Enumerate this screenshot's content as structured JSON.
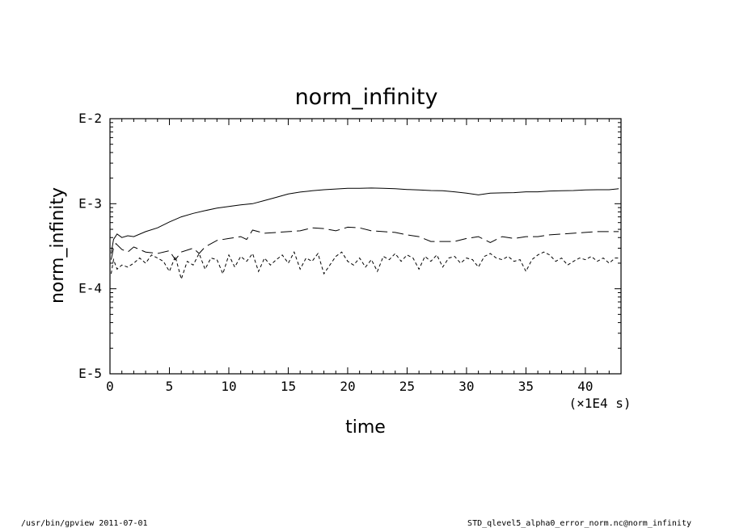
{
  "chart_data": {
    "type": "line",
    "title": "norm_infinity",
    "xlabel": "time",
    "ylabel": "norm_infinity",
    "x_unit_label": "(×1E4 s)",
    "x_ticks": [
      0,
      5,
      10,
      15,
      20,
      25,
      30,
      35,
      40
    ],
    "y_ticks": [
      "E-5",
      "E-4",
      "E-3",
      "E-2"
    ],
    "xlim": [
      0,
      43
    ],
    "ylim": [
      1e-05,
      0.01
    ],
    "y_scale": "log",
    "grid": false,
    "series": [
      {
        "style": "solid",
        "x": [
          0.1,
          0.3,
          0.6,
          1.0,
          1.5,
          2,
          3,
          4,
          5,
          6,
          7,
          8,
          9,
          10,
          11,
          12,
          13,
          14,
          15,
          16,
          17,
          18,
          19,
          20,
          21,
          22,
          23,
          24,
          25,
          26,
          27,
          28,
          29,
          30,
          31,
          32,
          33,
          34,
          35,
          36,
          37,
          38,
          39,
          40,
          41,
          42,
          42.8
        ],
        "y": [
          0.00026,
          0.00038,
          0.00044,
          0.0004,
          0.00042,
          0.00041,
          0.00047,
          0.00052,
          0.00061,
          0.0007,
          0.00077,
          0.00083,
          0.00089,
          0.00093,
          0.00097,
          0.001,
          0.00109,
          0.00119,
          0.0013,
          0.00137,
          0.00142,
          0.00146,
          0.00149,
          0.00152,
          0.00152,
          0.00153,
          0.00152,
          0.0015,
          0.00147,
          0.00145,
          0.00143,
          0.00142,
          0.00138,
          0.00133,
          0.00127,
          0.00133,
          0.00134,
          0.00135,
          0.00138,
          0.00138,
          0.00141,
          0.00142,
          0.00143,
          0.00145,
          0.00146,
          0.00146,
          0.0015
        ]
      },
      {
        "style": "long-dash",
        "x": [
          0.1,
          0.3,
          0.5,
          1.0,
          1.5,
          2,
          3,
          4,
          5,
          5.5,
          6,
          7,
          7.5,
          8,
          9,
          10,
          11,
          11.5,
          12,
          13,
          14,
          15,
          16,
          17,
          18,
          19,
          20,
          21,
          22,
          23,
          24,
          25,
          26,
          27,
          28,
          29,
          30,
          31,
          32,
          33,
          34,
          35,
          36,
          37,
          38,
          39,
          40,
          41,
          42,
          42.8
        ],
        "y": [
          0.00022,
          0.0003,
          0.00034,
          0.00029,
          0.00027,
          0.00031,
          0.00027,
          0.00026,
          0.00028,
          0.00022,
          0.00027,
          0.0003,
          0.00026,
          0.00031,
          0.00037,
          0.00039,
          0.00041,
          0.00038,
          0.00049,
          0.00045,
          0.00046,
          0.00047,
          0.00048,
          0.00052,
          0.00051,
          0.00048,
          0.00053,
          0.00052,
          0.00048,
          0.00047,
          0.00046,
          0.00043,
          0.00041,
          0.00036,
          0.00036,
          0.00036,
          0.00039,
          0.00041,
          0.00035,
          0.00041,
          0.00039,
          0.00041,
          0.00041,
          0.00043,
          0.00044,
          0.00045,
          0.00046,
          0.00047,
          0.00047,
          0.00047
        ]
      },
      {
        "style": "short-dash",
        "x": [
          0.1,
          0.3,
          0.6,
          1.0,
          1.5,
          2.0,
          2.5,
          3.0,
          3.5,
          4.0,
          4.5,
          5.0,
          5.5,
          6.0,
          6.5,
          7.0,
          7.5,
          8.0,
          8.5,
          9.0,
          9.5,
          10.0,
          10.5,
          11.0,
          11.5,
          12.0,
          12.5,
          13.0,
          13.5,
          14.0,
          14.5,
          15.0,
          15.5,
          16.0,
          16.5,
          17.0,
          17.5,
          18.0,
          18.5,
          19.0,
          19.5,
          20.0,
          20.5,
          21.0,
          21.5,
          22.0,
          22.5,
          23.0,
          23.5,
          24.0,
          24.5,
          25.0,
          25.5,
          26.0,
          26.5,
          27.0,
          27.5,
          28.0,
          28.5,
          29.0,
          29.5,
          30.0,
          30.5,
          31.0,
          31.5,
          32.0,
          32.5,
          33.0,
          33.5,
          34.0,
          34.5,
          35.0,
          35.5,
          36.0,
          36.5,
          37.0,
          37.5,
          38.0,
          38.5,
          39.0,
          39.5,
          40.0,
          40.5,
          41.0,
          41.5,
          42.0,
          42.5,
          42.8
        ],
        "y": [
          0.00015,
          0.00022,
          0.00017,
          0.00019,
          0.00018,
          0.0002,
          0.00023,
          0.0002,
          0.00025,
          0.00023,
          0.00021,
          0.00016,
          0.00024,
          0.00013,
          0.00021,
          0.00019,
          0.00026,
          0.00017,
          0.00023,
          0.00022,
          0.00015,
          0.00025,
          0.00018,
          0.00024,
          0.00021,
          0.00026,
          0.00016,
          0.00023,
          0.00019,
          0.00022,
          0.00025,
          0.0002,
          0.00027,
          0.00017,
          0.00023,
          0.00021,
          0.00026,
          0.00015,
          0.00019,
          0.00024,
          0.00027,
          0.00021,
          0.00019,
          0.00023,
          0.00018,
          0.00022,
          0.00016,
          0.00024,
          0.00022,
          0.00026,
          0.00021,
          0.00025,
          0.00023,
          0.00017,
          0.00024,
          0.00021,
          0.00025,
          0.00018,
          0.00023,
          0.00024,
          0.0002,
          0.00023,
          0.00022,
          0.00018,
          0.00024,
          0.00026,
          0.00023,
          0.00022,
          0.00024,
          0.00021,
          0.00022,
          0.00016,
          0.00022,
          0.00025,
          0.00027,
          0.00025,
          0.00021,
          0.00023,
          0.00019,
          0.00021,
          0.00023,
          0.00022,
          0.00024,
          0.00021,
          0.00023,
          0.0002,
          0.00023,
          0.00023
        ]
      }
    ]
  },
  "footer": {
    "left": "/usr/bin/gpview   2011-07-01",
    "right": "STD_qlevel5_alpha0_error_norm.nc@norm_infinity"
  }
}
